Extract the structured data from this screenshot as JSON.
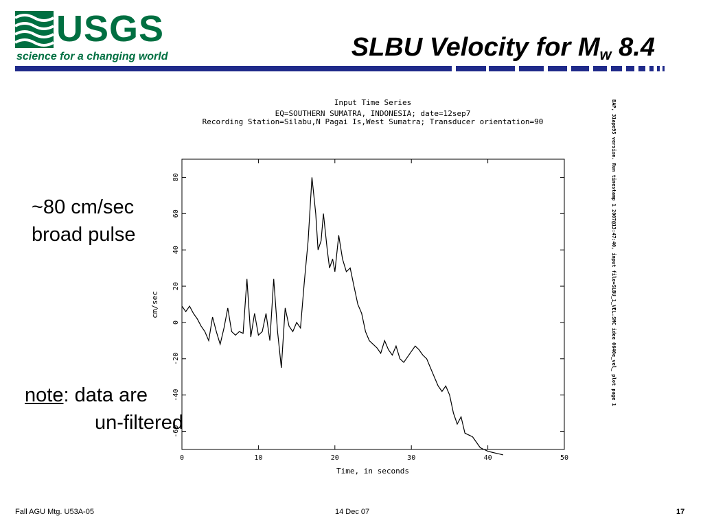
{
  "logo": {
    "text": "USGS",
    "tagline": "science for a changing world"
  },
  "slide": {
    "title_main": "SLBU Velocity for M",
    "title_sub": "w",
    "title_tail": " 8.4"
  },
  "annotations": {
    "pulse_line1": "~80 cm/sec",
    "pulse_line2": "broad pulse",
    "note_word": "note",
    "note_rest": ":  data are",
    "note_line2": "un-filtered"
  },
  "footer": {
    "left": "Fall AGU Mtg. U53A-05",
    "center": "14 Dec 07",
    "page": "17"
  },
  "side_text": "BAP, 31ape95 version.   Run timestamp 1 2007@13:47:40, input file=SLBU_1_VEL.SMC  idee 0640e_vel_ plot page 1",
  "colors": {
    "usgs_green": "#006f41",
    "rule_blue": "#1f2a8a"
  },
  "chart_data": {
    "type": "line",
    "title": "Input Time Series",
    "subtitle1": "EQ=SOUTHERN SUMATRA, INDONESIA; date=12sep7",
    "subtitle2": "Recording Station=Silabu,N Pagai Is,West Sumatra; Transducer orientation=90",
    "xlabel": "Time, in seconds",
    "ylabel": "cm/sec",
    "xlim": [
      0,
      50
    ],
    "ylim": [
      -70,
      90
    ],
    "xticks": [
      "0",
      "10",
      "20",
      "30",
      "40",
      "50"
    ],
    "yticks": [
      "-60",
      "-40",
      "-20",
      "0",
      "20",
      "40",
      "60",
      "80"
    ],
    "series": [
      {
        "x": [
          0,
          0.5,
          1,
          1.5,
          2,
          2.5,
          3,
          3.5,
          4,
          4.5,
          5,
          5.5,
          6,
          6.5,
          7,
          7.5,
          8,
          8.5,
          9,
          9.5,
          10,
          10.5,
          11,
          11.5,
          12,
          12.5,
          13,
          13.5,
          14,
          14.5,
          15,
          15.5,
          16,
          16.5,
          17,
          17.5,
          17.8,
          18.2,
          18.5,
          19,
          19.3,
          19.7,
          20,
          20.5,
          21,
          21.5,
          22,
          22.5,
          23,
          23.5,
          24,
          24.5,
          25,
          25.5,
          26,
          26.5,
          27,
          27.5,
          28,
          28.5,
          29,
          29.5,
          30,
          30.5,
          31,
          31.5,
          32,
          32.5,
          33,
          33.5,
          34,
          34.5,
          35,
          35.5,
          36,
          36.5,
          37,
          37.5,
          38,
          38.5,
          39,
          39.5,
          40,
          40.5,
          41,
          41.5,
          42
        ],
        "y": [
          9,
          6,
          9,
          5,
          2,
          -2,
          -5,
          -10,
          3,
          -5,
          -12,
          -3,
          8,
          -5,
          -7,
          -5,
          -6,
          24,
          -8,
          5,
          -7,
          -5,
          5,
          -10,
          24,
          -5,
          -25,
          8,
          -2,
          -5,
          0,
          -3,
          22,
          45,
          80,
          60,
          40,
          45,
          60,
          40,
          30,
          35,
          28,
          48,
          35,
          28,
          30,
          20,
          10,
          5,
          -5,
          -10,
          -12,
          -14,
          -17,
          -10,
          -15,
          -18,
          -13,
          -20,
          -22,
          -19,
          -16,
          -13,
          -15,
          -18,
          -20,
          -25,
          -30,
          -35,
          -38,
          -35,
          -40,
          -50,
          -56,
          -52,
          -61,
          -62,
          -63,
          -66,
          -69,
          -70,
          -71,
          -71.5,
          -72,
          -72.5,
          -73
        ]
      }
    ]
  }
}
